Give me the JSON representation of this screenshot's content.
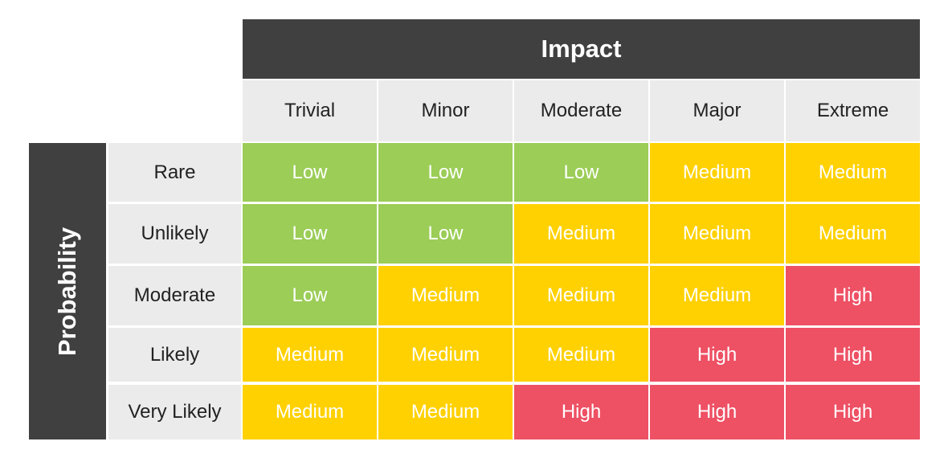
{
  "header": {
    "title": "Impact",
    "side_title": "Probability"
  },
  "columns": [
    "Trivial",
    "Minor",
    "Moderate",
    "Major",
    "Extreme"
  ],
  "rows": [
    {
      "label": "Rare",
      "cells": [
        {
          "text": "Low",
          "color": "#9bcd57"
        },
        {
          "text": "Low",
          "color": "#9bcd57"
        },
        {
          "text": "Low",
          "color": "#9bcd57"
        },
        {
          "text": "Medium",
          "color": "#ffd100"
        },
        {
          "text": "Medium",
          "color": "#ffd100"
        }
      ]
    },
    {
      "label": "Unlikely",
      "cells": [
        {
          "text": "Low",
          "color": "#9bcd57"
        },
        {
          "text": "Low",
          "color": "#9bcd57"
        },
        {
          "text": "Medium",
          "color": "#ffd100"
        },
        {
          "text": "Medium",
          "color": "#ffd100"
        },
        {
          "text": "Medium",
          "color": "#ffd100"
        }
      ]
    },
    {
      "label": "Moderate",
      "cells": [
        {
          "text": "Low",
          "color": "#9bcd57"
        },
        {
          "text": "Medium",
          "color": "#ffd100"
        },
        {
          "text": "Medium",
          "color": "#ffd100"
        },
        {
          "text": "Medium",
          "color": "#ffd100"
        },
        {
          "text": "High",
          "color": "#ee5064"
        }
      ]
    },
    {
      "label": "Likely",
      "cells": [
        {
          "text": "Medium",
          "color": "#ffd100"
        },
        {
          "text": "Medium",
          "color": "#ffd100"
        },
        {
          "text": "Medium",
          "color": "#ffd100"
        },
        {
          "text": "High",
          "color": "#ee5064"
        },
        {
          "text": "High",
          "color": "#ee5064"
        }
      ]
    },
    {
      "label": "Very Likely",
      "cells": [
        {
          "text": "Medium",
          "color": "#ffd100"
        },
        {
          "text": "Medium",
          "color": "#ffd100"
        },
        {
          "text": "High",
          "color": "#ee5064"
        },
        {
          "text": "High",
          "color": "#ee5064"
        },
        {
          "text": "High",
          "color": "#ee5064"
        }
      ]
    }
  ]
}
